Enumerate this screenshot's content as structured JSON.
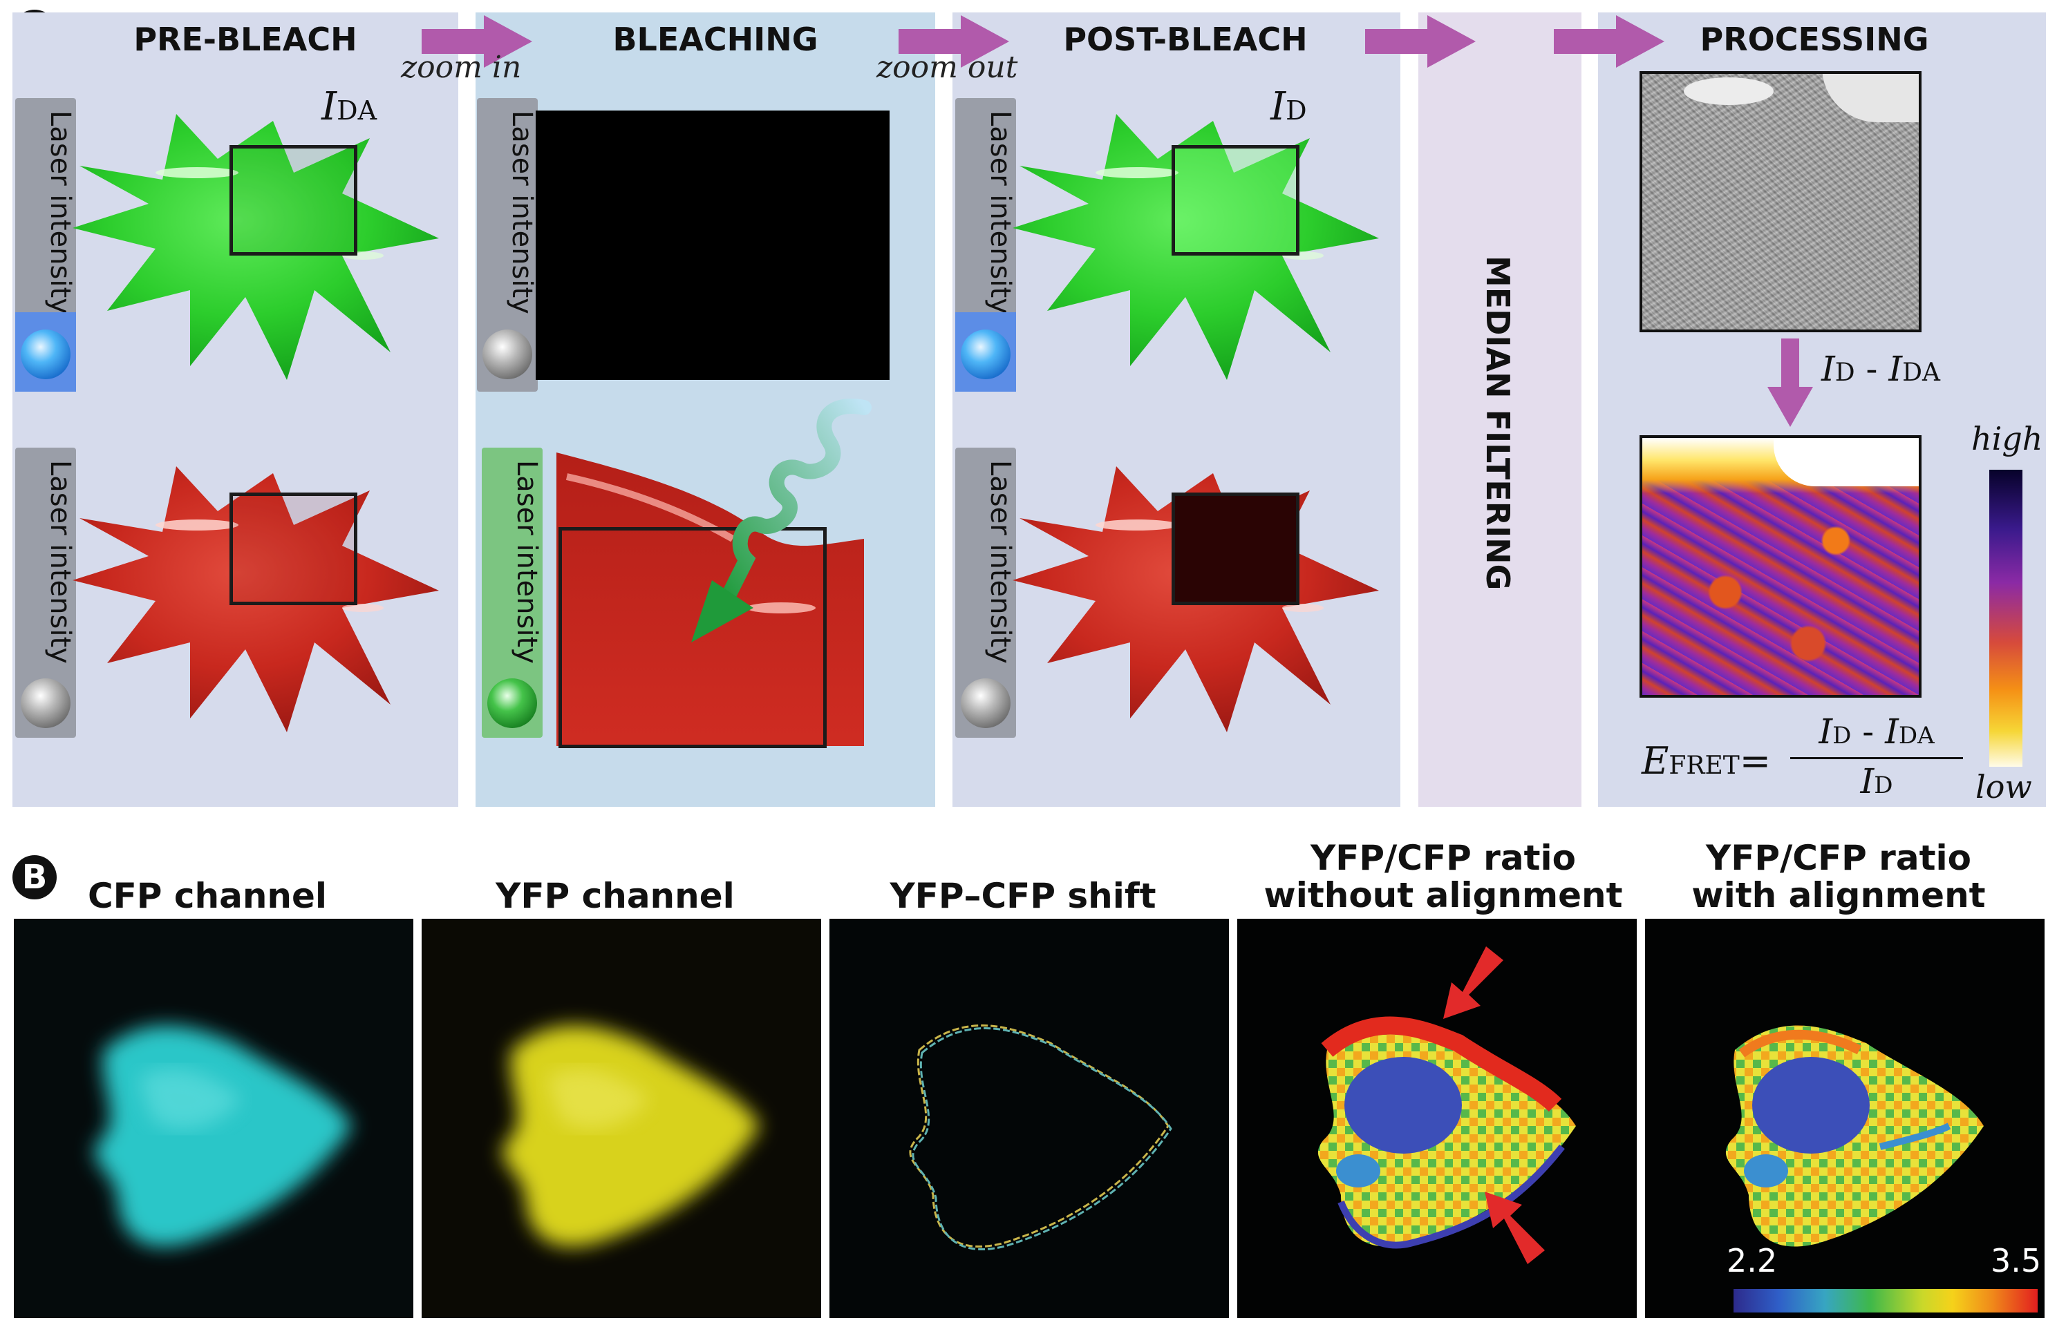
{
  "panel_a": {
    "label": "A",
    "headings": {
      "pre_bleach": "PRE-BLEACH",
      "bleaching": "BLEACHING",
      "post_bleach": "POST-BLEACH",
      "processing": "PROCESSING"
    },
    "zoom_in": "zoom in",
    "zoom_out": "zoom out",
    "laser_label": "Laser intensity",
    "median_filtering": "MEDIAN FILTERING",
    "i_da": {
      "base": "I",
      "sub": "DA"
    },
    "i_d": {
      "base": "I",
      "sub": "D"
    },
    "difference": {
      "a": "I",
      "a_sub": "D",
      "op": " - ",
      "b": "I",
      "b_sub": "DA"
    },
    "formula": {
      "lhs": "E",
      "lhs_sub": "FRET",
      "eq": "="
    },
    "scale_high": "high",
    "scale_low": "low",
    "colors": {
      "panel_bg": "#d6dbec",
      "bleach_bg": "#c6dbeb",
      "median_bg": "#e4dded",
      "arrow": "#b15aab",
      "green_cell": "#2ecb2e",
      "red_cell": "#c8281e"
    }
  },
  "panel_b": {
    "label": "B",
    "columns": [
      {
        "title": "CFP channel"
      },
      {
        "title": "YFP channel"
      },
      {
        "title": "YFP–CFP shift"
      },
      {
        "title_lines": [
          "YFP/CFP ratio",
          "without alignment"
        ]
      },
      {
        "title_lines": [
          "YFP/CFP ratio",
          "with alignment"
        ]
      }
    ],
    "colorbar_min": "2.2",
    "colorbar_max": "3.5",
    "colors": {
      "cfp": "#2cc6c8",
      "yfp": "#d8d21e"
    }
  }
}
